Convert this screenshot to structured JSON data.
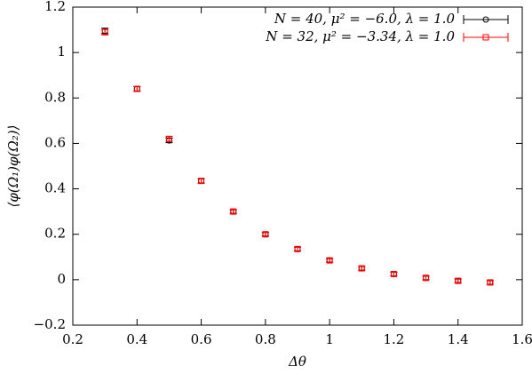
{
  "chart_data": {
    "type": "scatter",
    "x_label": "Δθ",
    "y_label": "⟨φ(Ω₁)φ(Ω₂)⟩",
    "x": [
      0.3,
      0.4,
      0.5,
      0.6,
      0.7,
      0.8,
      0.9,
      1.0,
      1.1,
      1.2,
      1.3,
      1.4,
      1.5
    ],
    "series": [
      {
        "name": "N = 40, μ² = −6.0, λ = 1.0",
        "color": "#000000",
        "marker": "circle",
        "values": [
          1.095,
          0.84,
          0.613,
          0.435,
          0.3,
          0.2,
          0.135,
          0.085,
          0.05,
          0.025,
          0.008,
          -0.005,
          -0.012
        ],
        "errors": [
          0.012,
          0.01,
          0.01,
          0.01,
          0.008,
          0.008,
          0.008,
          0.008,
          0.008,
          0.008,
          0.008,
          0.008,
          0.008
        ]
      },
      {
        "name": "N = 32, μ² = −3.34, λ = 1.0",
        "color": "#ff0000",
        "marker": "square",
        "values": [
          1.09,
          0.84,
          0.62,
          0.435,
          0.3,
          0.2,
          0.135,
          0.085,
          0.05,
          0.025,
          0.008,
          -0.005,
          -0.012
        ],
        "errors": [
          0.012,
          0.01,
          0.01,
          0.01,
          0.008,
          0.008,
          0.008,
          0.008,
          0.008,
          0.008,
          0.008,
          0.008,
          0.008
        ]
      }
    ],
    "xlim": [
      0.2,
      1.6
    ],
    "xticks": [
      0.2,
      0.4,
      0.6,
      0.8,
      1,
      1.2,
      1.4,
      1.6
    ],
    "ylim": [
      -0.2,
      1.2
    ],
    "yticks": [
      {
        "value": -0.2,
        "label": "−0.2"
      },
      0,
      0.2,
      0.4,
      0.6,
      0.8,
      1,
      1.2
    ],
    "legend": "top-right"
  }
}
